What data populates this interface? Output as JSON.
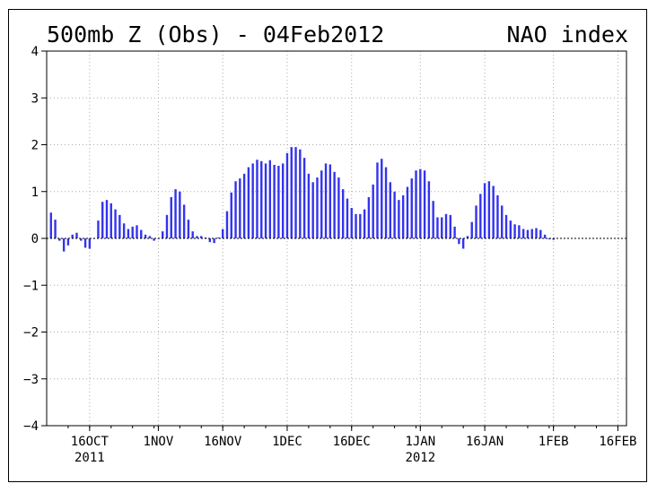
{
  "chart_data": {
    "type": "bar",
    "title": "500mb Z (Obs) - 04Feb2012",
    "subtitle": "NAO index",
    "ylim": [
      -4,
      4
    ],
    "yticks": [
      4,
      3,
      2,
      1,
      0,
      -1,
      -2,
      -3,
      -4
    ],
    "ytick_labels": [
      "4",
      "3",
      "2",
      "1",
      "0",
      "−1",
      "−2",
      "−3",
      "−4"
    ],
    "x_start_date": "2011-10-06",
    "x_end_date": "2012-02-18",
    "xtick_labels": [
      {
        "date": "2011-10-16",
        "label": "16OCT",
        "sublabel": "2011"
      },
      {
        "date": "2011-11-01",
        "label": "1NOV",
        "sublabel": ""
      },
      {
        "date": "2011-11-16",
        "label": "16NOV",
        "sublabel": ""
      },
      {
        "date": "2011-12-01",
        "label": "1DEC",
        "sublabel": ""
      },
      {
        "date": "2011-12-16",
        "label": "16DEC",
        "sublabel": ""
      },
      {
        "date": "2012-01-01",
        "label": "1JAN",
        "sublabel": "2012"
      },
      {
        "date": "2012-01-16",
        "label": "16JAN",
        "sublabel": ""
      },
      {
        "date": "2012-02-01",
        "label": "1FEB",
        "sublabel": ""
      },
      {
        "date": "2012-02-16",
        "label": "16FEB",
        "sublabel": ""
      }
    ],
    "grid": true,
    "bar_color": "#3333ee",
    "series": [
      {
        "start_date": "2011-10-07",
        "values": [
          0.55,
          0.4,
          -0.05,
          -0.28,
          -0.15,
          0.08,
          0.12,
          -0.05,
          -0.2,
          -0.22,
          0.0,
          0.38,
          0.78,
          0.82,
          0.75,
          0.62,
          0.5,
          0.32,
          0.2,
          0.25,
          0.28,
          0.18,
          0.08,
          0.05,
          -0.05,
          0.0,
          0.15,
          0.5,
          0.88,
          1.05,
          1.0,
          0.72,
          0.4,
          0.15,
          0.05,
          0.05,
          0.02,
          -0.08,
          -0.1,
          0.02,
          0.2,
          0.58,
          0.98,
          1.22,
          1.28,
          1.38,
          1.52,
          1.6,
          1.68,
          1.65,
          1.6,
          1.67,
          1.57,
          1.55,
          1.6,
          1.82,
          1.95,
          1.95,
          1.9,
          1.72,
          1.38,
          1.2,
          1.3,
          1.45,
          1.6,
          1.58,
          1.42,
          1.3,
          1.05,
          0.85,
          0.65,
          0.52,
          0.52,
          0.62,
          0.88,
          1.15,
          1.62,
          1.7,
          1.52,
          1.2,
          1.0,
          0.82,
          0.92,
          1.1,
          1.28,
          1.45,
          1.48,
          1.45,
          1.22,
          0.8,
          0.45,
          0.45,
          0.52,
          0.5,
          0.25,
          -0.12,
          -0.22,
          0.05,
          0.35,
          0.7,
          0.95,
          1.18,
          1.22,
          1.12,
          0.92,
          0.7,
          0.5,
          0.38,
          0.3,
          0.28,
          0.2,
          0.18,
          0.2,
          0.22,
          0.18,
          0.08,
          -0.02,
          -0.03
        ]
      }
    ]
  }
}
